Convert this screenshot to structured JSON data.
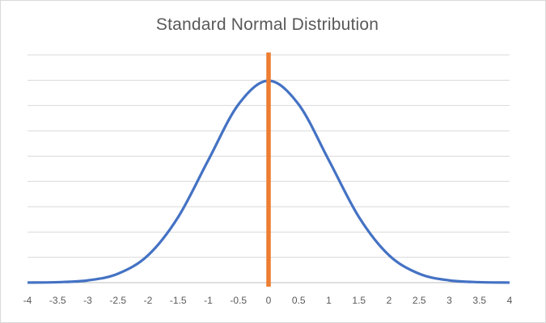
{
  "chart_data": {
    "type": "line",
    "title": "Standard Normal Distribution",
    "xlabel": "",
    "ylabel": "",
    "xlim": [
      -4,
      4
    ],
    "ylim": [
      0,
      0.45
    ],
    "x_ticks": [
      "-4",
      "-3.5",
      "-3",
      "-2.5",
      "-2",
      "-1.5",
      "-1",
      "-0.5",
      "0",
      "0.5",
      "1",
      "1.5",
      "2",
      "2.5",
      "3",
      "3.5",
      "4"
    ],
    "grid": true,
    "legend": "none",
    "series": [
      {
        "color": "#4472c4",
        "x": [
          -4,
          -3.5,
          -3,
          -2.5,
          -2,
          -1.5,
          -1,
          -0.5,
          0,
          0.5,
          1,
          1.5,
          2,
          2.5,
          3,
          3.5,
          4
        ],
        "values": [
          0.0001,
          0.0009,
          0.0044,
          0.0175,
          0.054,
          0.1295,
          0.242,
          0.3521,
          0.3989,
          0.3521,
          0.242,
          0.1295,
          0.054,
          0.0175,
          0.0044,
          0.0009,
          0.0001
        ]
      },
      {
        "color": "#ed7d31",
        "x": [
          0,
          0
        ],
        "values": [
          0,
          0.45
        ]
      }
    ]
  }
}
